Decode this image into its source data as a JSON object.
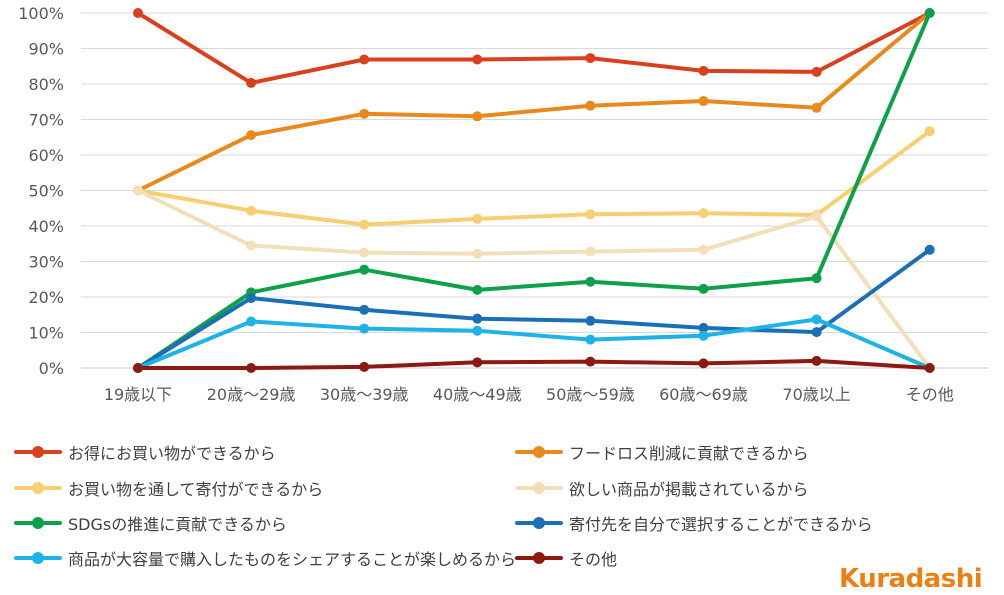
{
  "chart_data": {
    "type": "line",
    "title": "",
    "xlabel": "",
    "ylabel": "",
    "ylim": [
      0,
      100
    ],
    "y_ticks": [
      "0%",
      "10%",
      "20%",
      "30%",
      "40%",
      "50%",
      "60%",
      "70%",
      "80%",
      "90%",
      "100%"
    ],
    "grid": true,
    "legend_position": "bottom",
    "categories": [
      "19歳以下",
      "20歳〜29歳",
      "30歳〜39歳",
      "40歳〜49歳",
      "50歳〜59歳",
      "60歳〜69歳",
      "70歳以上",
      "その他"
    ],
    "series": [
      {
        "name": "お得にお買い物ができるから",
        "color": "#d9411e",
        "values": [
          100,
          80.3,
          86.9,
          86.9,
          87.3,
          83.7,
          83.4,
          100
        ]
      },
      {
        "name": "フードロス削減に貢献できるから",
        "color": "#e8891b",
        "values": [
          50,
          65.6,
          71.6,
          70.9,
          73.9,
          75.2,
          73.3,
          100
        ]
      },
      {
        "name": "お買い物を通して寄付ができるから",
        "color": "#f5cf72",
        "values": [
          50,
          44.3,
          40.4,
          42.0,
          43.3,
          43.6,
          43.1,
          66.7
        ]
      },
      {
        "name": "欲しい商品が掲載されているから",
        "color": "#f2dfb8",
        "values": [
          50,
          34.5,
          32.5,
          32.2,
          32.8,
          33.3,
          42.7,
          0
        ]
      },
      {
        "name": "SDGsの推進に貢献できるから",
        "color": "#0fa14a",
        "values": [
          0,
          21.3,
          27.7,
          22.0,
          24.3,
          22.3,
          25.3,
          100
        ]
      },
      {
        "name": "寄付先を自分で選択することができるから",
        "color": "#1b6fb6",
        "values": [
          0,
          19.7,
          16.4,
          13.9,
          13.3,
          11.3,
          10.1,
          33.3
        ]
      },
      {
        "name": "商品が大容量で購入したものをシェアすることが楽しめるから",
        "color": "#1eb2e6",
        "values": [
          0,
          13.1,
          11.1,
          10.5,
          8.0,
          9.1,
          13.7,
          0
        ]
      },
      {
        "name": "その他",
        "color": "#8b1a10",
        "values": [
          0,
          0,
          0.3,
          1.6,
          1.8,
          1.3,
          2.0,
          0
        ]
      }
    ]
  },
  "logo": {
    "text": "Kuradashi",
    "color": "#ee7f11"
  }
}
